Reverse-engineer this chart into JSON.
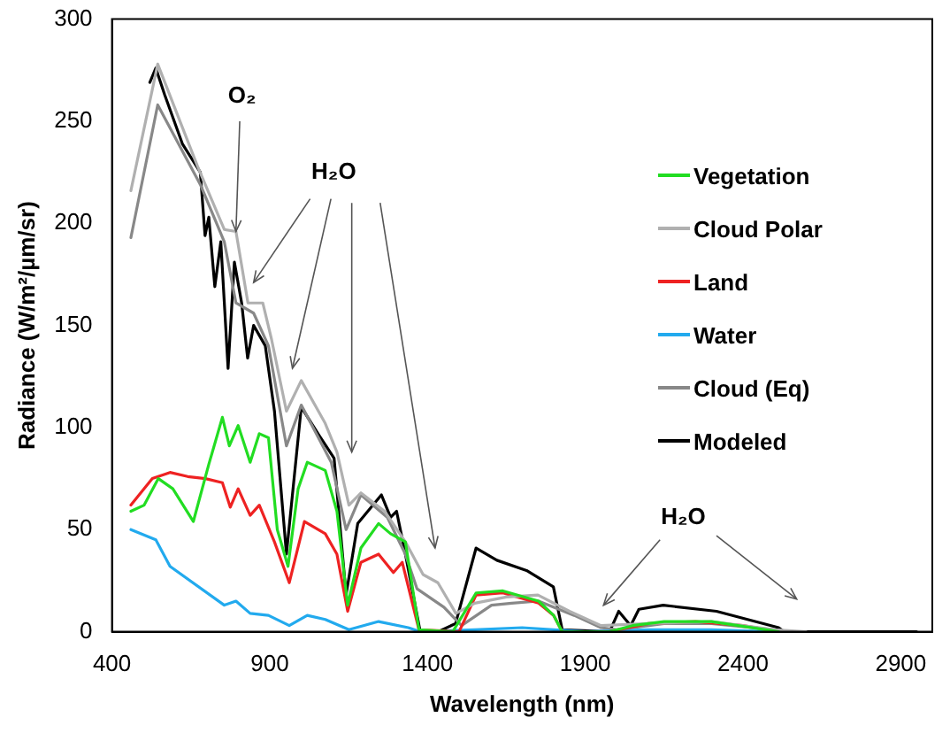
{
  "chart_data": {
    "type": "line",
    "xlabel": "Wavelength (nm)",
    "ylabel": "Radiance (W/m²/µm/sr)",
    "xlim": [
      400,
      3000
    ],
    "xticks": [
      400,
      900,
      1400,
      1900,
      2400,
      2900
    ],
    "ylim": [
      0,
      300
    ],
    "yticks": [
      0,
      50,
      100,
      150,
      200,
      250,
      300
    ],
    "grid": false,
    "legend": "top right",
    "marker": "none",
    "line_style": "solid",
    "annotations": [
      {
        "text": "O₂",
        "x": 793,
        "y": 196
      },
      "H₂O",
      "H₂O"
    ],
    "series": [
      {
        "name": "Vegetation",
        "color": "#22dd22",
        "x": [
          460,
          502,
          547,
          593,
          658,
          707,
          750,
          772,
          800,
          838,
          867,
          896,
          924,
          958,
          990,
          1019,
          1076,
          1113,
          1147,
          1189,
          1245,
          1283,
          1330,
          1373,
          1480,
          1527,
          1554,
          1639,
          1752,
          1800,
          1827,
          1977,
          2050,
          2150,
          2300,
          2513
        ],
        "values": [
          59,
          62,
          75,
          70,
          54,
          82,
          105,
          91,
          101,
          83,
          97,
          95,
          50,
          32,
          70,
          83,
          79,
          59,
          13,
          41,
          53,
          48,
          44,
          1,
          0,
          12,
          19,
          20,
          15,
          8,
          0,
          0,
          3,
          5,
          5,
          0
        ]
      },
      {
        "name": "Cloud Polar",
        "color": "#b0b0b0",
        "x": [
          460,
          545,
          671,
          756,
          793,
          831,
          878,
          906,
          953,
          1000,
          1076,
          1113,
          1151,
          1189,
          1264,
          1330,
          1386,
          1433,
          1490,
          1550,
          1650,
          1750,
          1850,
          1950,
          2100,
          2300,
          2500,
          2600
        ],
        "values": [
          216,
          278,
          228,
          197,
          196,
          161,
          161,
          143,
          108,
          123,
          102,
          88,
          62,
          68,
          59,
          44,
          28,
          24,
          9,
          14,
          17,
          18,
          10,
          3,
          4,
          5,
          1,
          0
        ]
      },
      {
        "name": "Land",
        "color": "#ee2222",
        "x": [
          460,
          528,
          584,
          640,
          696,
          750,
          775,
          800,
          838,
          867,
          915,
          962,
          1010,
          1076,
          1113,
          1147,
          1189,
          1245,
          1292,
          1320,
          1373,
          1500,
          1554,
          1639,
          1752,
          1800,
          1827,
          1977,
          2100,
          2250,
          2400,
          2513
        ],
        "values": [
          62,
          75,
          78,
          76,
          75,
          73,
          61,
          70,
          57,
          62,
          44,
          24,
          54,
          48,
          38,
          10,
          34,
          38,
          29,
          34,
          1,
          0,
          18,
          19,
          14,
          8,
          0,
          0,
          4,
          5,
          3,
          0
        ]
      },
      {
        "name": "Water",
        "color": "#22aaee",
        "x": [
          460,
          539,
          584,
          756,
          793,
          838,
          896,
          962,
          1019,
          1076,
          1151,
          1245,
          1339,
          1377,
          1550,
          1700,
          1800,
          1900,
          2100,
          2300,
          2500
        ],
        "values": [
          50,
          45,
          32,
          13,
          15,
          9,
          8,
          3,
          8,
          6,
          1,
          5,
          2,
          0,
          1,
          2,
          1,
          0,
          1,
          1,
          0
        ]
      },
      {
        "name": "Cloud (Eq)",
        "color": "#888888",
        "x": [
          460,
          545,
          680,
          756,
          793,
          849,
          896,
          953,
          1000,
          1095,
          1142,
          1189,
          1273,
          1330,
          1367,
          1452,
          1508,
          1603,
          1667,
          1752,
          1865,
          1950,
          2000,
          2150,
          2300,
          2500,
          2550
        ],
        "values": [
          193,
          258,
          219,
          191,
          161,
          156,
          140,
          91,
          111,
          83,
          50,
          67,
          56,
          38,
          21,
          12,
          3,
          13,
          14,
          15,
          8,
          2,
          1,
          4,
          4,
          1,
          0
        ]
      },
      {
        "name": "Modeled",
        "color": "#000000",
        "x": [
          520,
          539,
          567,
          623,
          680,
          695,
          707,
          726,
          745,
          768,
          788,
          811,
          830,
          849,
          886,
          915,
          953,
          1000,
          1057,
          1104,
          1142,
          1179,
          1254,
          1283,
          1302,
          1330,
          1377,
          1433,
          1489,
          1554,
          1620,
          1714,
          1799,
          1827,
          1977,
          2006,
          2044,
          2070,
          2147,
          2316,
          2513,
          2530,
          2950
        ],
        "values": [
          269,
          276,
          263,
          239,
          225,
          194,
          203,
          169,
          191,
          129,
          181,
          161,
          134,
          150,
          140,
          108,
          38,
          110,
          96,
          85,
          18,
          53,
          67,
          56,
          59,
          38,
          0,
          0,
          4,
          41,
          35,
          30,
          22,
          1,
          0,
          10,
          3,
          11,
          13,
          10,
          2,
          0,
          0
        ]
      }
    ]
  }
}
